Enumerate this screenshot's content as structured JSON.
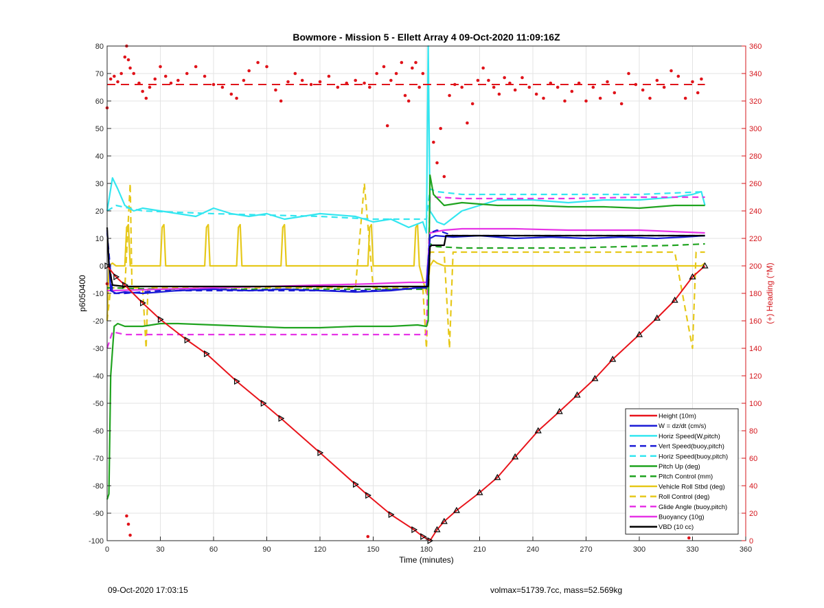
{
  "footer": {
    "timestamp": "09-Oct-2020 17:03:15",
    "info": "volmax=51739.7cc, mass=52.569kg"
  },
  "chart_data": {
    "type": "line",
    "title": "Bowmore - Mission 5 - Ellett Array 4 09-Oct-2020 11:09:16Z",
    "xlabel": "Time (minutes)",
    "ylabel": "p6050400",
    "y2label": "(+) Heading (°M)",
    "xlim": [
      0,
      360
    ],
    "ylim": [
      -100,
      80
    ],
    "y2lim": [
      0,
      360
    ],
    "xticks": [
      0,
      30,
      60,
      90,
      120,
      150,
      180,
      210,
      240,
      270,
      300,
      330,
      360
    ],
    "yticks": [
      -100,
      -90,
      -80,
      -70,
      -60,
      -50,
      -40,
      -30,
      -20,
      -10,
      0,
      10,
      20,
      30,
      40,
      50,
      60,
      70,
      80
    ],
    "y2ticks": [
      0,
      20,
      40,
      60,
      80,
      100,
      120,
      140,
      160,
      180,
      200,
      220,
      240,
      260,
      280,
      300,
      320,
      340,
      360
    ],
    "grid": true,
    "legend_position": "bottom-right",
    "colors": {
      "height": "#e8141b",
      "w": "#1a1ad6",
      "horiz_w": "#33e6f0",
      "vert_buoy": "#1a1ad6",
      "horiz_buoy": "#33e6f0",
      "pitch": "#1fa31f",
      "pitch_control": "#1fa31f",
      "roll": "#e6c81a",
      "roll_control": "#e6c81a",
      "glide": "#e633e6",
      "buoyancy": "#e633e6",
      "vbd": "#000000",
      "heading": "#e0141b",
      "right_axis": "#d4141a"
    },
    "series": [
      {
        "key": "height",
        "name": "Height (10m)",
        "style": "solid",
        "x": [
          0,
          5,
          10,
          20,
          30,
          45,
          56,
          73,
          88,
          98,
          120,
          140,
          147,
          160,
          173,
          178,
          182,
          186,
          190,
          197,
          210,
          220,
          230,
          243,
          255,
          265,
          275,
          285,
          300,
          310,
          320,
          330,
          337
        ],
        "y": [
          0,
          -4,
          -7,
          -13.5,
          -19.5,
          -27,
          -32,
          -42,
          -50,
          -55.5,
          -68,
          -79.5,
          -83.5,
          -90.5,
          -96,
          -98.5,
          -100,
          -96,
          -93,
          -89,
          -82.5,
          -77,
          -69.5,
          -60,
          -53,
          -47,
          -41,
          -34,
          -25,
          -19,
          -12.5,
          -4,
          0
        ]
      },
      {
        "key": "w",
        "name": "W = dz/dt (cm/s)",
        "style": "solid",
        "x": [
          0,
          2,
          5,
          10,
          20,
          40,
          60,
          80,
          100,
          120,
          140,
          160,
          175,
          180,
          182,
          185,
          195,
          210,
          230,
          250,
          270,
          290,
          310,
          325,
          337
        ],
        "y": [
          13,
          -9,
          -10,
          -9.5,
          -10,
          -9,
          -8.5,
          -9,
          -8.5,
          -9,
          -9.5,
          -9,
          -8,
          -8,
          10,
          11,
          10.5,
          11,
          10,
          10.5,
          10,
          10.5,
          10,
          10.5,
          11
        ]
      },
      {
        "key": "horiz_w",
        "name": "Horiz Speed(W,pitch)",
        "style": "solid",
        "x": [
          0,
          3,
          6,
          10,
          15,
          20,
          30,
          40,
          50,
          60,
          70,
          80,
          90,
          100,
          110,
          120,
          140,
          150,
          160,
          170,
          178,
          180,
          181,
          182,
          184,
          186,
          190,
          200,
          220,
          240,
          260,
          280,
          300,
          320,
          330,
          335,
          337
        ],
        "y": [
          20,
          32,
          28,
          22,
          20,
          21,
          20,
          19,
          18,
          21,
          19,
          18,
          19,
          17,
          18,
          19,
          18,
          16,
          17,
          14,
          16,
          12,
          80,
          20,
          18,
          16,
          15,
          20,
          24,
          24,
          23,
          24,
          24,
          25,
          26,
          27,
          22
        ]
      },
      {
        "key": "vert_buoy",
        "name": "Vert Speed(buoy,pitch)",
        "style": "dashed",
        "x": [
          0,
          3,
          10,
          30,
          60,
          90,
          120,
          150,
          175,
          180,
          182,
          186,
          195,
          220,
          260,
          300,
          337
        ],
        "y": [
          12,
          -10,
          -10,
          -9,
          -9,
          -9,
          -9,
          -9,
          -8,
          -8,
          12,
          13,
          11,
          11,
          11,
          11,
          11
        ]
      },
      {
        "key": "horiz_buoy",
        "name": "Horiz Speed(buoy,pitch)",
        "style": "dashed",
        "x": [
          0,
          5,
          20,
          60,
          90,
          120,
          150,
          175,
          180,
          182,
          186,
          200,
          230,
          260,
          300,
          337
        ],
        "y": [
          20,
          22,
          20,
          19,
          18.5,
          18,
          17,
          17,
          17,
          28,
          27,
          26,
          26,
          26,
          26,
          27
        ]
      },
      {
        "key": "pitch",
        "name": "Pitch Up (deg)",
        "style": "solid",
        "x": [
          0,
          1,
          2,
          4,
          6,
          10,
          20,
          30,
          40,
          60,
          80,
          100,
          120,
          140,
          160,
          175,
          180,
          181,
          182,
          184,
          190,
          200,
          220,
          240,
          260,
          280,
          300,
          320,
          335,
          337
        ],
        "y": [
          -85,
          -83,
          -40,
          -22,
          -21,
          -22,
          -22,
          -21,
          -21,
          -21.5,
          -22,
          -22.5,
          -22.5,
          -22,
          -22,
          -21.5,
          -22,
          -20,
          33,
          26,
          22,
          23,
          22,
          22,
          21.5,
          21.5,
          21,
          22,
          22,
          22
        ]
      },
      {
        "key": "pitch_control",
        "name": "Pitch Control (mm)",
        "style": "dashed",
        "x": [
          0,
          3,
          30,
          60,
          90,
          120,
          150,
          180,
          182,
          186,
          200,
          230,
          260,
          290,
          320,
          337
        ],
        "y": [
          -8,
          -8,
          -8.5,
          -8.5,
          -8.5,
          -8.5,
          -8.5,
          -8.5,
          8,
          7,
          6.5,
          6.5,
          6.5,
          7,
          7.5,
          8
        ]
      },
      {
        "key": "roll",
        "name": "Vehicle Roll Stbd (deg)",
        "style": "solid",
        "x": [
          0,
          1,
          3,
          5,
          10,
          11,
          12,
          13,
          17,
          30,
          31,
          32,
          33,
          35,
          55,
          56,
          57,
          58,
          60,
          73,
          74,
          75,
          76,
          80,
          98,
          99,
          100,
          101,
          120,
          147,
          148,
          149,
          150,
          160,
          173,
          174,
          175,
          176,
          180,
          182,
          184,
          186,
          190,
          195,
          200,
          210,
          220,
          230,
          240,
          250,
          260,
          270,
          280,
          290,
          300,
          310,
          320,
          330,
          335,
          337
        ],
        "y": [
          -20,
          0,
          1,
          0,
          0,
          14,
          15,
          0,
          0,
          0,
          14,
          15,
          0,
          0,
          0,
          14,
          15,
          0,
          0,
          0,
          14,
          15,
          0,
          0,
          0,
          14,
          15,
          0,
          0,
          0,
          14,
          15,
          0,
          0,
          0,
          14,
          15,
          0,
          -10,
          0,
          2,
          1,
          0,
          0,
          0,
          0,
          0,
          0,
          0,
          0,
          0,
          0,
          0,
          0,
          0,
          0,
          0,
          0,
          0,
          1
        ]
      },
      {
        "key": "roll_control",
        "name": "Roll Control (deg)",
        "style": "dashed",
        "x": [
          0,
          2,
          4,
          10,
          13,
          14,
          20,
          22,
          23,
          24,
          30,
          35,
          60,
          100,
          140,
          145,
          150,
          155,
          160,
          170,
          178,
          180,
          182,
          185,
          190,
          193,
          195,
          200,
          220,
          240,
          260,
          280,
          300,
          320,
          330,
          332,
          334,
          337
        ],
        "y": [
          -20,
          -8,
          -8,
          -8,
          30,
          -8,
          -8,
          -30,
          -8,
          -8,
          -8,
          -8,
          -8,
          -8,
          -8,
          30,
          -8,
          -8,
          -8,
          -8,
          -8,
          -30,
          5,
          5,
          5,
          -30,
          5,
          5,
          5,
          5,
          5,
          5,
          5,
          5,
          -30,
          5,
          5,
          5
        ]
      },
      {
        "key": "glide",
        "name": "Glide Angle (buoy,pitch)",
        "style": "dashed",
        "x": [
          0,
          3,
          10,
          30,
          60,
          90,
          120,
          150,
          170,
          180,
          182,
          186,
          200,
          230,
          260,
          300,
          330,
          337
        ],
        "y": [
          -30,
          -24,
          -25,
          -25,
          -25,
          -25,
          -25,
          -25,
          -25,
          -25,
          25,
          25,
          24.5,
          24.5,
          24.5,
          25,
          25,
          25
        ]
      },
      {
        "key": "buoyancy",
        "name": "Buoyancy (10g)",
        "style": "solid",
        "x": [
          0,
          3,
          30,
          60,
          90,
          120,
          150,
          170,
          180,
          182,
          190,
          200,
          230,
          260,
          300,
          337
        ],
        "y": [
          -9,
          -9,
          -8.5,
          -8,
          -7.5,
          -7,
          -6.5,
          -6,
          -6,
          12,
          13,
          13.5,
          13.5,
          13,
          13,
          12
        ]
      },
      {
        "key": "vbd",
        "name": "VBD (10 cc)",
        "style": "solid",
        "x": [
          0,
          1,
          3,
          10,
          40,
          80,
          120,
          160,
          175,
          181,
          182,
          183,
          190,
          191,
          192,
          210,
          250,
          290,
          320,
          330,
          337
        ],
        "y": [
          14,
          0,
          -7,
          -7.5,
          -7.5,
          -7.5,
          -7.5,
          -7.5,
          -7.5,
          -7.5,
          7,
          7.5,
          7.5,
          11,
          11,
          11,
          11,
          11,
          11,
          11,
          11
        ]
      },
      {
        "key": "heading",
        "name": "(+) Heading (°M)",
        "style": "dots",
        "axis": "right",
        "target": 332,
        "target_xrange": [
          0,
          337
        ],
        "x": [
          0,
          2,
          4,
          6,
          8,
          10,
          11,
          12,
          13,
          15,
          18,
          20,
          22,
          24,
          27,
          30,
          33,
          36,
          40,
          45,
          50,
          55,
          60,
          65,
          70,
          73,
          77,
          80,
          85,
          90,
          95,
          98,
          102,
          106,
          110,
          115,
          120,
          125,
          130,
          135,
          140,
          145,
          148,
          152,
          156,
          158,
          160,
          163,
          166,
          168,
          170,
          172,
          174,
          176,
          178,
          184,
          186,
          188,
          190,
          193,
          196,
          200,
          203,
          206,
          209,
          212,
          215,
          218,
          221,
          224,
          227,
          230,
          234,
          238,
          242,
          246,
          250,
          254,
          258,
          262,
          266,
          270,
          274,
          278,
          282,
          286,
          290,
          294,
          298,
          302,
          306,
          310,
          314,
          318,
          322,
          326,
          330,
          333,
          335
        ],
        "y": [
          315,
          336,
          338,
          334,
          340,
          352,
          360,
          350,
          344,
          340,
          333,
          327,
          322,
          330,
          336,
          345,
          338,
          333,
          335,
          340,
          345,
          338,
          332,
          330,
          325,
          322,
          335,
          342,
          348,
          345,
          328,
          320,
          334,
          340,
          335,
          332,
          334,
          338,
          330,
          333,
          335,
          333,
          330,
          340,
          345,
          302,
          335,
          340,
          348,
          324,
          320,
          344,
          348,
          330,
          340,
          290,
          275,
          300,
          265,
          324,
          332,
          330,
          304,
          318,
          335,
          344,
          335,
          330,
          325,
          337,
          333,
          328,
          337,
          330,
          325,
          322,
          333,
          330,
          320,
          327,
          333,
          320,
          330,
          322,
          334,
          326,
          318,
          340,
          332,
          328,
          322,
          335,
          330,
          342,
          338,
          322,
          334,
          326,
          336
        ]
      }
    ],
    "outliers": {
      "heading_low_x": [
        0,
        11,
        12,
        13,
        147,
        327,
        328
      ],
      "heading_low_y": [
        187,
        18,
        12,
        4,
        3,
        10,
        2
      ]
    },
    "legend": [
      "Height (10m)",
      "W = dz/dt (cm/s)",
      "Horiz Speed(W,pitch)",
      "Vert Speed(buoy,pitch)",
      "Horiz Speed(buoy,pitch)",
      "Pitch Up (deg)",
      "Pitch Control (mm)",
      "Vehicle Roll Stbd (deg)",
      "Roll Control (deg)",
      "Glide Angle (buoy,pitch)",
      "Buoyancy (10g)",
      "VBD (10 cc)"
    ]
  }
}
